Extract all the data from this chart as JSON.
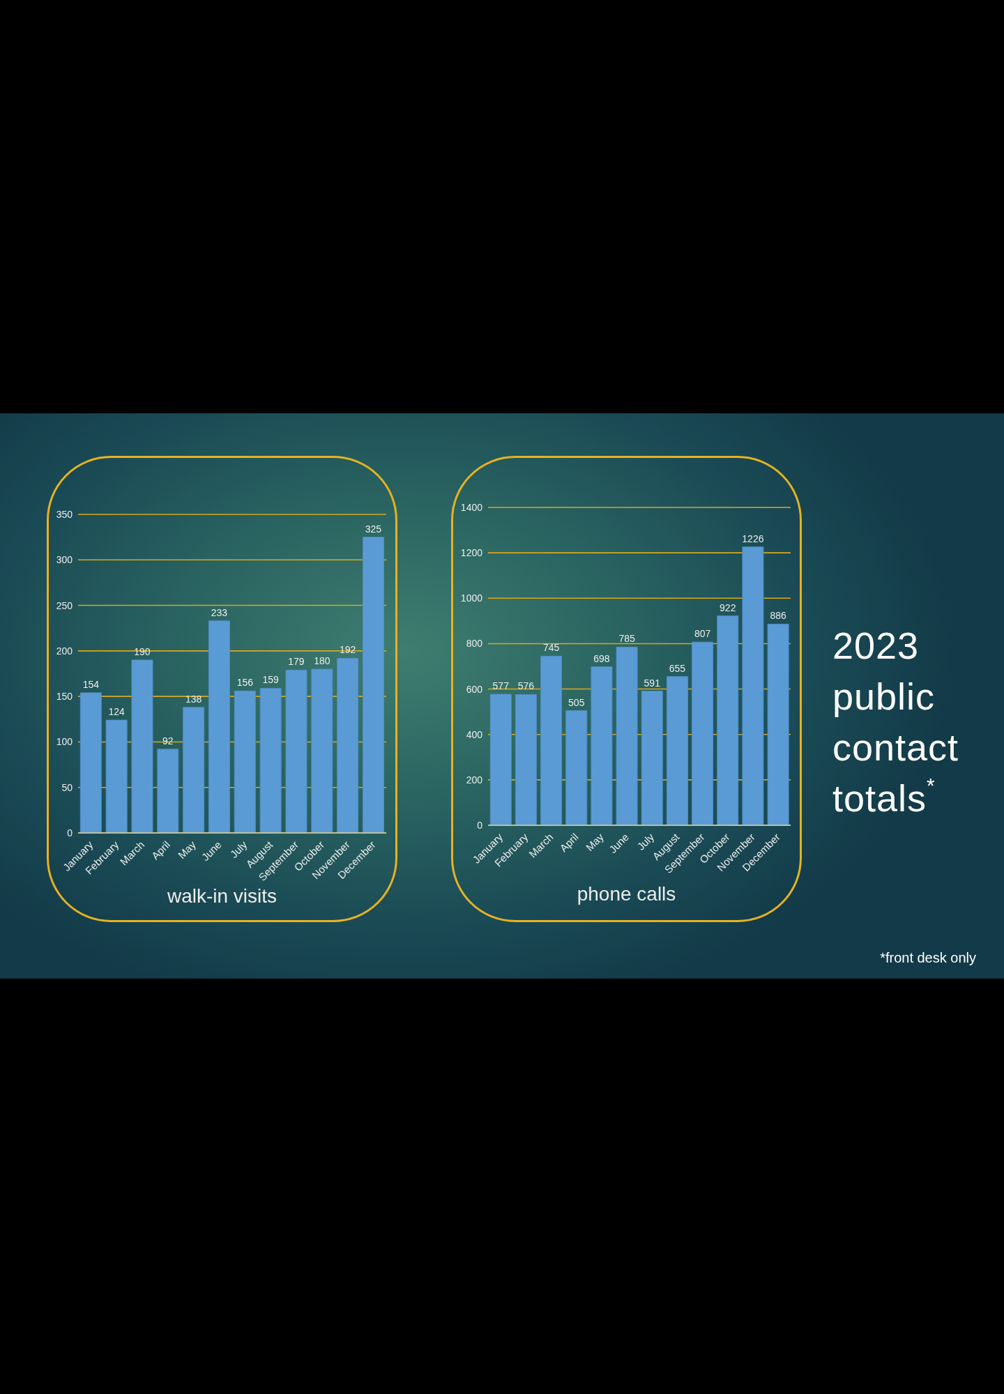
{
  "chart_data": [
    {
      "type": "bar",
      "xlabel": "walk-in visits",
      "categories": [
        "January",
        "February",
        "March",
        "April",
        "May",
        "June",
        "July",
        "August",
        "September",
        "October",
        "November",
        "December"
      ],
      "values": [
        154,
        124,
        190,
        92,
        138,
        233,
        156,
        159,
        179,
        180,
        192,
        325
      ],
      "color": "#5b9bd5",
      "ylim": [
        0,
        350
      ],
      "yticks": [
        0,
        50,
        100,
        150,
        200,
        250,
        300,
        350
      ],
      "grid": "y",
      "data_labels": true
    },
    {
      "type": "bar",
      "xlabel": "phone calls",
      "categories": [
        "January",
        "February",
        "March",
        "April",
        "May",
        "June",
        "July",
        "August",
        "September",
        "October",
        "November",
        "December"
      ],
      "values": [
        577,
        576,
        745,
        505,
        698,
        785,
        591,
        655,
        807,
        922,
        1226,
        886
      ],
      "color": "#5b9bd5",
      "ylim": [
        0,
        1400
      ],
      "yticks": [
        0,
        200,
        400,
        600,
        800,
        1000,
        1200,
        1400
      ],
      "grid": "y",
      "data_labels": true
    },
    {
      "type": "other",
      "title": "2023 public contact totals$^{*}$",
      "annotations": [
        "*front desk only"
      ]
    }
  ]
}
